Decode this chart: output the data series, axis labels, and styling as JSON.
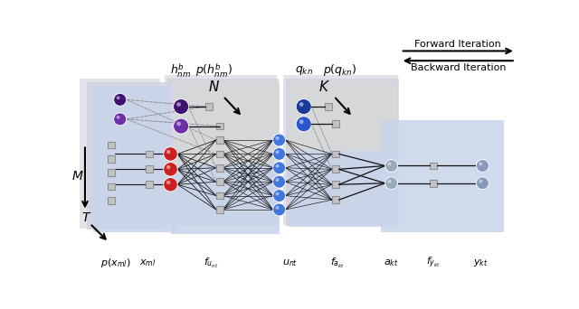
{
  "fig_width": 6.4,
  "fig_height": 3.42,
  "dpi": 100,
  "bg": "#ffffff",
  "panel_blue": "#c8d4ea",
  "panel_gray": "#d8d8d8",
  "panel_back1": "#d5d8e0",
  "panel_back2": "#cdd0dc",
  "sq_color": "#c2c2c2",
  "sq_edge": "#909090",
  "purple_dark": "#3d1270",
  "purple_med": "#6b30a8",
  "red_node": "#cc2020",
  "blue_dark": "#1a3a99",
  "blue_med": "#2a55cc",
  "blue_light": "#4477dd",
  "gray_node": "#99aabb",
  "gray_node2": "#8899bb",
  "line_color": "#111111",
  "dash_color": "#909090"
}
